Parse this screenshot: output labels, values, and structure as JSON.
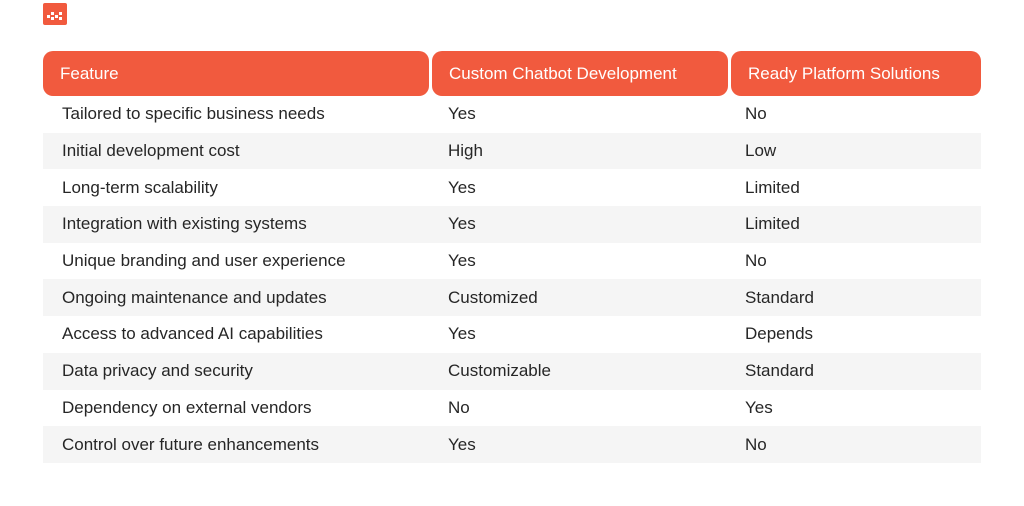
{
  "header": {
    "feature": "Feature",
    "custom": "Custom Chatbot Development",
    "ready": "Ready Platform Solutions"
  },
  "rows": [
    {
      "feature": "Tailored to specific business needs",
      "custom": "Yes",
      "ready": "No"
    },
    {
      "feature": "Initial development cost",
      "custom": "High",
      "ready": "Low"
    },
    {
      "feature": "Long-term scalability",
      "custom": "Yes",
      "ready": "Limited"
    },
    {
      "feature": "Integration with existing systems",
      "custom": "Yes",
      "ready": "Limited"
    },
    {
      "feature": "Unique branding and user experience",
      "custom": "Yes",
      "ready": "No"
    },
    {
      "feature": "Ongoing maintenance and updates",
      "custom": "Customized",
      "ready": "Standard"
    },
    {
      "feature": "Access to advanced AI capabilities",
      "custom": "Yes",
      "ready": "Depends"
    },
    {
      "feature": "Data privacy and security",
      "custom": "Customizable",
      "ready": "Standard"
    },
    {
      "feature": "Dependency on external vendors",
      "custom": "No",
      "ready": "Yes"
    },
    {
      "feature": "Control over future enhancements",
      "custom": "Yes",
      "ready": "No"
    }
  ],
  "colors": {
    "accent": "#f15a3e",
    "row_alt": "#f5f5f5"
  },
  "logo_icon": "brand-logo-icon"
}
